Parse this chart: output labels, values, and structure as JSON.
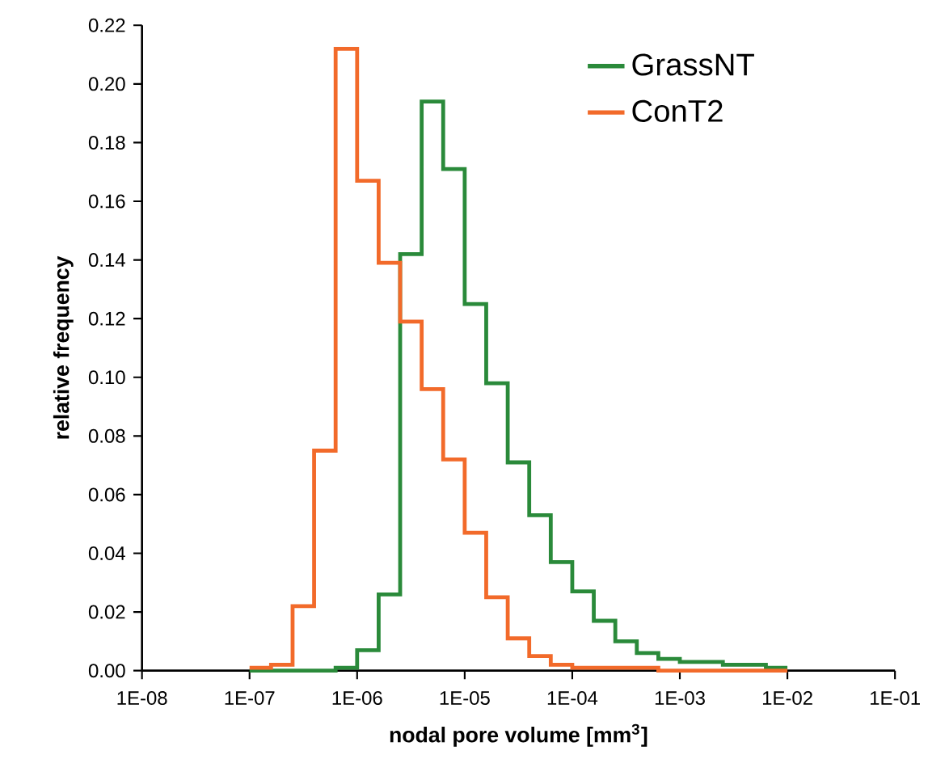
{
  "chart_data": {
    "type": "histogram",
    "xlabel": "nodal pore volume [mm$^{3}$]",
    "ylabel": "relative frequency",
    "bins": [
      1e-07,
      1.585e-07,
      2.512e-07,
      3.981e-07,
      6.31e-07,
      1e-06,
      1.585e-06,
      2.512e-06,
      3.981e-06,
      6.31e-06,
      1e-05,
      1.585e-05,
      2.512e-05,
      3.981e-05,
      6.31e-05,
      0.0001,
      0.0001585,
      0.0002512,
      0.0003981,
      0.000631,
      0.001,
      0.001585,
      0.002512,
      0.003981,
      0.00631,
      0.01
    ],
    "series": [
      {
        "name": "GrassNT",
        "color": "#2a8a3a",
        "values": [
          0,
          0,
          0,
          0,
          0.001,
          0.007,
          0.026,
          0.142,
          0.194,
          0.171,
          0.125,
          0.098,
          0.071,
          0.053,
          0.037,
          0.027,
          0.017,
          0.01,
          0.006,
          0.004,
          0.003,
          0.003,
          0.002,
          0.002,
          0.001
        ]
      },
      {
        "name": "ConT2",
        "color": "#f26a2a",
        "values": [
          0.001,
          0.002,
          0.022,
          0.075,
          0.212,
          0.167,
          0.139,
          0.119,
          0.096,
          0.072,
          0.047,
          0.025,
          0.011,
          0.005,
          0.002,
          0.001,
          0.001,
          0.001,
          0.001,
          0,
          0,
          0,
          0,
          0,
          0
        ]
      }
    ],
    "log": "x",
    "xlim": [
      1e-08,
      0.1
    ],
    "xticks": [
      {
        "value": 1e-08,
        "label": "1E-08"
      },
      {
        "value": 1e-07,
        "label": "1E-07"
      },
      {
        "value": 1e-06,
        "label": "1E-06"
      },
      {
        "value": 1e-05,
        "label": "1E-05"
      },
      {
        "value": 0.0001,
        "label": "1E-04"
      },
      {
        "value": 0.001,
        "label": "1E-03"
      },
      {
        "value": 0.01,
        "label": "1E-02"
      },
      {
        "value": 0.1,
        "label": "1E-01"
      }
    ],
    "ylim": [
      0,
      0.22
    ],
    "yticks": [
      {
        "value": 0,
        "label": "0.00"
      },
      {
        "value": 0.02,
        "label": "0.02"
      },
      {
        "value": 0.04,
        "label": "0.04"
      },
      {
        "value": 0.06,
        "label": "0.06"
      },
      {
        "value": 0.08,
        "label": "0.08"
      },
      {
        "value": 0.1,
        "label": "0.10"
      },
      {
        "value": 0.12,
        "label": "0.12"
      },
      {
        "value": 0.14,
        "label": "0.14"
      },
      {
        "value": 0.16,
        "label": "0.16"
      },
      {
        "value": 0.18,
        "label": "0.18"
      },
      {
        "value": 0.2,
        "label": "0.20"
      },
      {
        "value": 0.22,
        "label": "0.22"
      }
    ],
    "legend": "top right",
    "grid": false
  }
}
